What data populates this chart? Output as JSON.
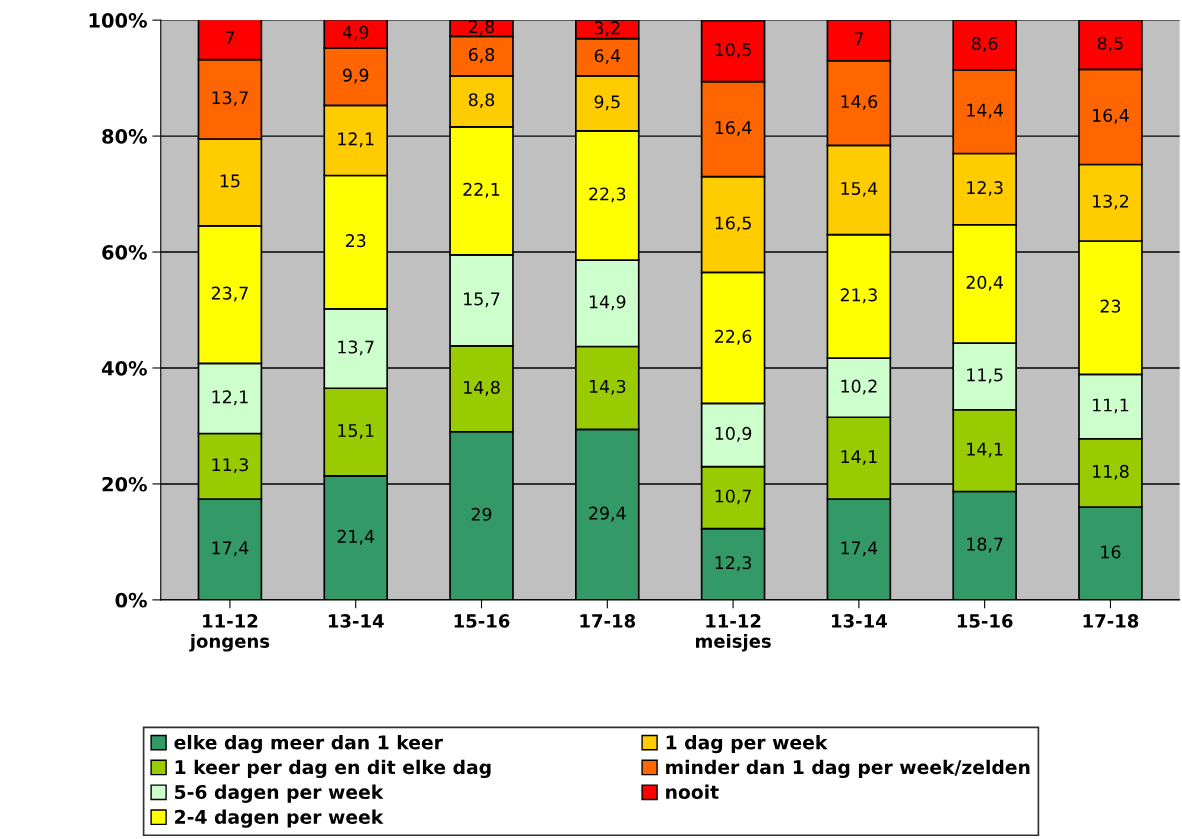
{
  "chart_data": {
    "type": "bar",
    "stacked": true,
    "categories": [
      "11-12\njongens",
      "13-14",
      "15-16",
      "17-18",
      "11-12\nmeisjes",
      "13-14",
      "15-16",
      "17-18"
    ],
    "series": [
      {
        "name": "elke dag meer dan 1 keer",
        "color": "#339966",
        "values": [
          17.4,
          21.4,
          29,
          29.4,
          12.3,
          17.4,
          18.7,
          16
        ],
        "value_labels": [
          "17,4",
          "21,4",
          "29",
          "29,4",
          "12,3",
          "17,4",
          "18,7",
          "16"
        ]
      },
      {
        "name": "1 keer per dag en dit elke dag",
        "color": "#99cc00",
        "values": [
          11.3,
          15.1,
          14.8,
          14.3,
          10.7,
          14.1,
          14.1,
          11.8
        ],
        "value_labels": [
          "11,3",
          "15,1",
          "14,8",
          "14,3",
          "10,7",
          "14,1",
          "14,1",
          "11,8"
        ]
      },
      {
        "name": "5-6 dagen per week",
        "color": "#ccffcc",
        "values": [
          12.1,
          13.7,
          15.7,
          14.9,
          10.9,
          10.2,
          11.5,
          11.1
        ],
        "value_labels": [
          "12,1",
          "13,7",
          "15,7",
          "14,9",
          "10,9",
          "10,2",
          "11,5",
          "11,1"
        ]
      },
      {
        "name": "2-4 dagen per week",
        "color": "#ffff00",
        "values": [
          23.7,
          23,
          22.1,
          22.3,
          22.6,
          21.3,
          20.4,
          23
        ],
        "value_labels": [
          "23,7",
          "23",
          "22,1",
          "22,3",
          "22,6",
          "21,3",
          "20,4",
          "23"
        ]
      },
      {
        "name": "1 dag per week",
        "color": "#ffcc00",
        "values": [
          15,
          12.1,
          8.8,
          9.5,
          16.5,
          15.4,
          12.3,
          13.2
        ],
        "value_labels": [
          "15",
          "12,1",
          "8,8",
          "9,5",
          "16,5",
          "15,4",
          "12,3",
          "13,2"
        ]
      },
      {
        "name": "minder dan 1 dag per week/zelden",
        "color": "#ff6600",
        "values": [
          13.7,
          9.9,
          6.8,
          6.4,
          16.4,
          14.6,
          14.4,
          16.4
        ],
        "value_labels": [
          "13,7",
          "9,9",
          "6,8",
          "6,4",
          "16,4",
          "14,6",
          "14,4",
          "16,4"
        ]
      },
      {
        "name": "nooit",
        "color": "#ff0000",
        "values": [
          7,
          4.9,
          2.8,
          3.2,
          10.5,
          7,
          8.6,
          8.5
        ],
        "value_labels": [
          "7",
          "4,9",
          "2,8",
          "3,2",
          "10,5",
          "7",
          "8,6",
          "8,5"
        ]
      }
    ],
    "ylim": [
      0,
      100
    ],
    "yticks": [
      {
        "value": 0,
        "label": "0%"
      },
      {
        "value": 20,
        "label": "20%"
      },
      {
        "value": 40,
        "label": "40%"
      },
      {
        "value": 60,
        "label": "60%"
      },
      {
        "value": 80,
        "label": "80%"
      },
      {
        "value": 100,
        "label": "100%"
      }
    ],
    "grid": "y",
    "legend": "bottom"
  }
}
